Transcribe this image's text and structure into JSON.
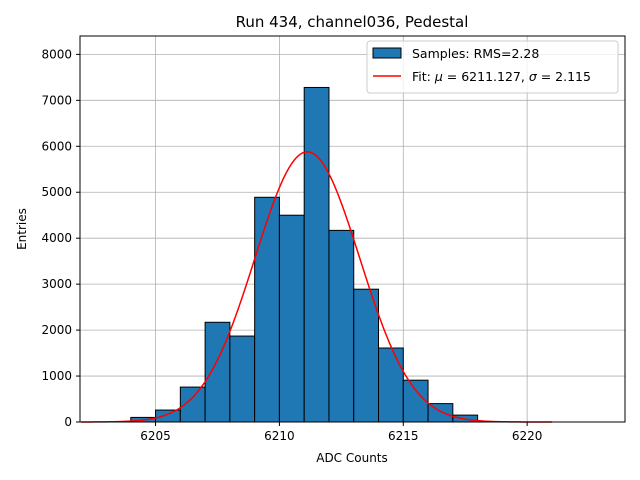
{
  "chart_data": {
    "type": "bar",
    "title": "Run 434, channel036, Pedestal",
    "xlabel": "ADC Counts",
    "ylabel": "Entries",
    "xlim": [
      6201.95,
      6223.95
    ],
    "ylim": [
      0,
      8400
    ],
    "xticks": [
      6205,
      6210,
      6215,
      6220
    ],
    "yticks": [
      0,
      1000,
      2000,
      3000,
      4000,
      5000,
      6000,
      7000,
      8000
    ],
    "grid": true,
    "legend_position": "upper-right",
    "bins": [
      {
        "x0": 6204.0,
        "x1": 6205.0,
        "count": 100
      },
      {
        "x0": 6205.0,
        "x1": 6206.0,
        "count": 260
      },
      {
        "x0": 6206.0,
        "x1": 6207.0,
        "count": 760
      },
      {
        "x0": 6207.0,
        "x1": 6208.0,
        "count": 2170
      },
      {
        "x0": 6208.0,
        "x1": 6209.0,
        "count": 1870
      },
      {
        "x0": 6209.0,
        "x1": 6210.0,
        "count": 4890
      },
      {
        "x0": 6210.0,
        "x1": 6211.0,
        "count": 4500
      },
      {
        "x0": 6211.0,
        "x1": 6212.0,
        "count": 7280
      },
      {
        "x0": 6212.0,
        "x1": 6213.0,
        "count": 4170
      },
      {
        "x0": 6213.0,
        "x1": 6214.0,
        "count": 2890
      },
      {
        "x0": 6214.0,
        "x1": 6215.0,
        "count": 1610
      },
      {
        "x0": 6215.0,
        "x1": 6216.0,
        "count": 910
      },
      {
        "x0": 6216.0,
        "x1": 6217.0,
        "count": 400
      },
      {
        "x0": 6217.0,
        "x1": 6218.0,
        "count": 150
      }
    ],
    "fit": {
      "amplitude": 5880,
      "mu": 6211.127,
      "sigma": 2.115,
      "x_range": [
        6202.0,
        6221.0
      ]
    },
    "series": [
      {
        "name": "Samples: RMS=2.28",
        "kind": "histogram",
        "color": "#1f77b4",
        "edge": "#000000"
      },
      {
        "name_parts": [
          "Fit: ",
          "μ",
          " = 6211.127, ",
          "σ",
          " = 2.115"
        ],
        "kind": "line",
        "color": "#ff0000"
      }
    ]
  }
}
